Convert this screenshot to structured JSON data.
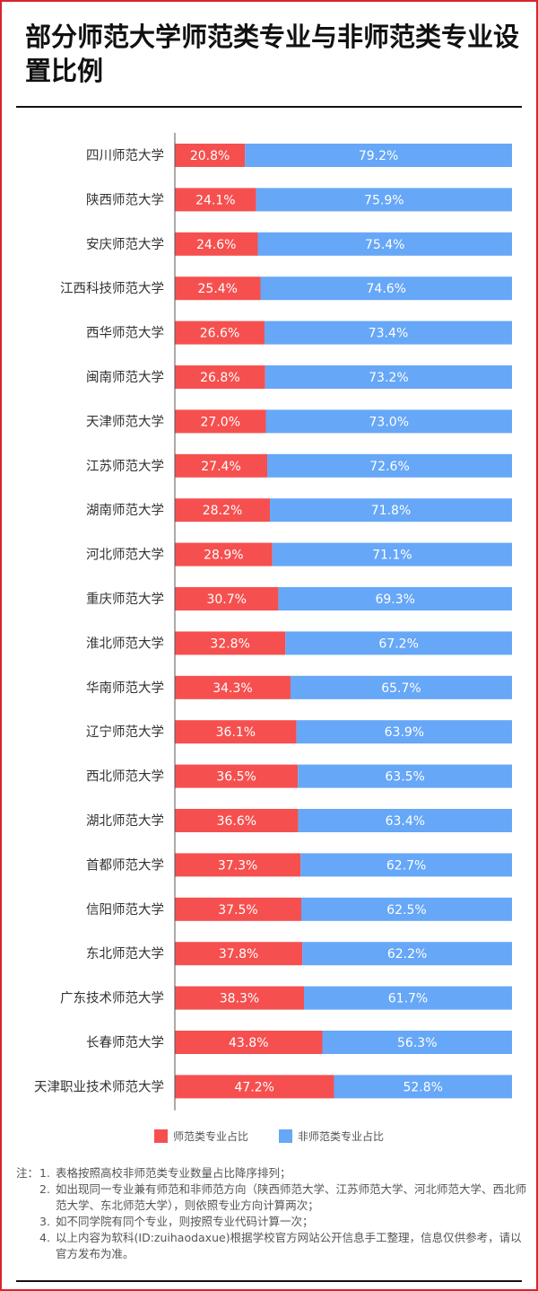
{
  "title": "部分师范大学师范类专业与非师范类专业设置比例",
  "colors": {
    "teacher": "#f5504f",
    "non_teacher": "#66a7f7",
    "frame": "#d9262c"
  },
  "chart_data": {
    "type": "bar",
    "stacked": true,
    "orientation": "horizontal",
    "xlim": [
      0,
      100
    ],
    "categories": [
      "四川师范大学",
      "陕西师范大学",
      "安庆师范大学",
      "江西科技师范大学",
      "西华师范大学",
      "闽南师范大学",
      "天津师范大学",
      "江苏师范大学",
      "湖南师范大学",
      "河北师范大学",
      "重庆师范大学",
      "淮北师范大学",
      "华南师范大学",
      "辽宁师范大学",
      "西北师范大学",
      "湖北师范大学",
      "首都师范大学",
      "信阳师范大学",
      "东北师范大学",
      "广东技术师范大学",
      "长春师范大学",
      "天津职业技术师范大学"
    ],
    "series": [
      {
        "name": "师范类专业占比",
        "values": [
          20.8,
          24.1,
          24.6,
          25.4,
          26.6,
          26.8,
          27.0,
          27.4,
          28.2,
          28.9,
          30.7,
          32.8,
          34.3,
          36.1,
          36.5,
          36.6,
          37.3,
          37.5,
          37.8,
          38.3,
          43.8,
          47.2
        ]
      },
      {
        "name": "非师范类专业占比",
        "values": [
          79.2,
          75.9,
          75.4,
          74.6,
          73.4,
          73.2,
          73.0,
          72.6,
          71.8,
          71.1,
          69.3,
          67.2,
          65.7,
          63.9,
          63.5,
          63.4,
          62.7,
          62.5,
          62.2,
          61.7,
          56.3,
          52.8
        ]
      }
    ],
    "legend": "bottom"
  },
  "notes": {
    "label": "注：",
    "items": [
      {
        "num": "1.",
        "text": "表格按照高校非师范类专业数量占比降序排列；"
      },
      {
        "num": "2.",
        "text": "如出现同一专业兼有师范和非师范方向（陕西师范大学、江苏师范大学、河北师范大学、西北师范大学、东北师范大学），则依照专业方向计算两次；"
      },
      {
        "num": "3.",
        "text": "如不同学院有同个专业，则按照专业代码计算一次；"
      },
      {
        "num": "4.",
        "text": "以上内容为软科(ID:zuihaodaxue)根据学校官方网站公开信息手工整理，信息仅供参考，请以官方发布为准。"
      }
    ]
  }
}
